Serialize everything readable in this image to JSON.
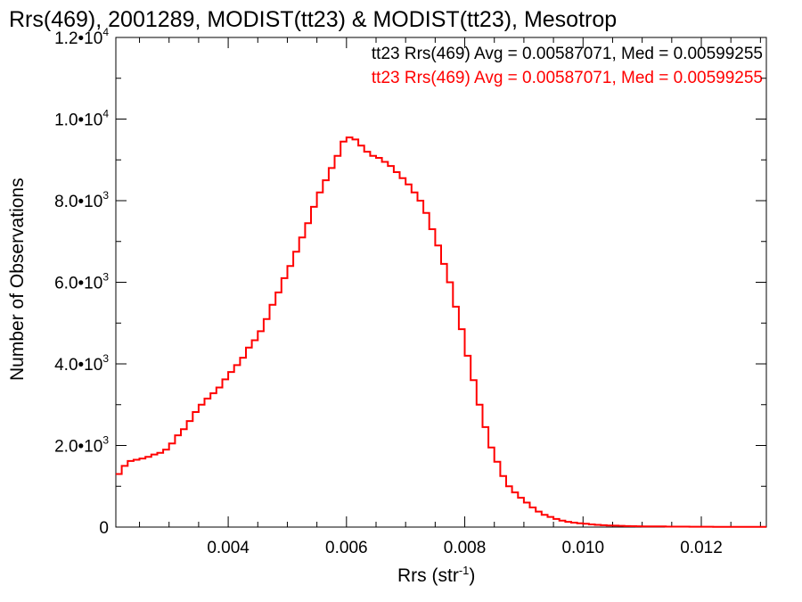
{
  "colors": {
    "series_black": "#000000",
    "series_red": "#ff0000"
  },
  "chart_data": {
    "type": "line",
    "style": "step-histogram",
    "title": "Rrs(469), 2001289, MODIST(tt23) & MODIST(tt23), Mesotrop",
    "xlabel_main": "Rrs (str",
    "xlabel_sup": "-1",
    "xlabel_tail": ")",
    "ylabel": "Number of Observations",
    "xlim": [
      0.0021,
      0.0131
    ],
    "ylim": [
      0,
      12000
    ],
    "x_ticks": [
      0.004,
      0.006,
      0.008,
      0.01,
      0.012
    ],
    "x_tick_labels": [
      "0.004",
      "0.006",
      "0.008",
      "0.010",
      "0.012"
    ],
    "y_ticks": [
      0,
      2000,
      4000,
      6000,
      8000,
      10000,
      12000
    ],
    "y_tick_labels": [
      {
        "base": "0",
        "exp": ""
      },
      {
        "base": "2.0•10",
        "exp": "3"
      },
      {
        "base": "4.0•10",
        "exp": "3"
      },
      {
        "base": "6.0•10",
        "exp": "3"
      },
      {
        "base": "8.0•10",
        "exp": "3"
      },
      {
        "base": "1.0•10",
        "exp": "4"
      },
      {
        "base": "1.2•10",
        "exp": "4"
      }
    ],
    "legend": [
      {
        "label": "tt23 Rrs(469) Avg = 0.00587071, Med = 0.00599255",
        "color": "#000000"
      },
      {
        "label": "tt23 Rrs(469) Avg = 0.00587071, Med = 0.00599255",
        "color": "#ff0000"
      }
    ],
    "series": [
      {
        "color": "#ff0000",
        "x": [
          0.0021,
          0.0022,
          0.0023,
          0.0024,
          0.0025,
          0.0026,
          0.0027,
          0.0028,
          0.0029,
          0.003,
          0.0031,
          0.0032,
          0.0033,
          0.0034,
          0.0035,
          0.0036,
          0.0037,
          0.0038,
          0.0039,
          0.004,
          0.0041,
          0.0042,
          0.0043,
          0.0044,
          0.0045,
          0.0046,
          0.0047,
          0.0048,
          0.0049,
          0.005,
          0.0051,
          0.0052,
          0.0053,
          0.0054,
          0.0055,
          0.0056,
          0.0057,
          0.0058,
          0.0059,
          0.006,
          0.0061,
          0.0062,
          0.0063,
          0.0064,
          0.0065,
          0.0066,
          0.0067,
          0.0068,
          0.0069,
          0.007,
          0.0071,
          0.0072,
          0.0073,
          0.0074,
          0.0075,
          0.0076,
          0.0077,
          0.0078,
          0.0079,
          0.008,
          0.0081,
          0.0082,
          0.0083,
          0.0084,
          0.0085,
          0.0086,
          0.0087,
          0.0088,
          0.0089,
          0.009,
          0.0091,
          0.0092,
          0.0093,
          0.0094,
          0.0095,
          0.0096,
          0.0097,
          0.0098,
          0.0099,
          0.01,
          0.0101,
          0.0102,
          0.0103,
          0.0104,
          0.0105,
          0.0106,
          0.0107,
          0.0108,
          0.0109,
          0.011,
          0.0112,
          0.0114,
          0.0116,
          0.0118,
          0.012,
          0.0122,
          0.0124,
          0.0126,
          0.0128,
          0.0131
        ],
        "values": [
          1300,
          1500,
          1620,
          1650,
          1680,
          1720,
          1780,
          1820,
          1900,
          2050,
          2250,
          2400,
          2600,
          2820,
          3000,
          3150,
          3280,
          3420,
          3620,
          3800,
          3970,
          4150,
          4400,
          4580,
          4800,
          5100,
          5450,
          5750,
          6100,
          6400,
          6750,
          7100,
          7450,
          7850,
          8200,
          8500,
          8800,
          9100,
          9450,
          9550,
          9500,
          9350,
          9200,
          9100,
          9050,
          8950,
          8850,
          8700,
          8550,
          8400,
          8200,
          8000,
          7700,
          7300,
          6900,
          6450,
          6000,
          5400,
          4850,
          4200,
          3600,
          3000,
          2450,
          1950,
          1600,
          1250,
          1000,
          850,
          720,
          600,
          480,
          380,
          300,
          250,
          200,
          160,
          130,
          110,
          95,
          80,
          65,
          55,
          45,
          40,
          35,
          30,
          25,
          22,
          20,
          18,
          15,
          12,
          10,
          9,
          8,
          7,
          6,
          5,
          5,
          5
        ]
      }
    ]
  }
}
